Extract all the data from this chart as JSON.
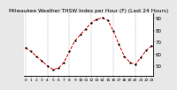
{
  "title": "Milwaukee Weather THSW Index per Hour (F) (Last 24 Hours)",
  "hours": [
    0,
    1,
    2,
    3,
    4,
    5,
    6,
    7,
    8,
    9,
    10,
    11,
    12,
    13,
    14,
    15,
    16,
    17,
    18,
    19,
    20,
    21,
    22,
    23
  ],
  "values": [
    65,
    62,
    58,
    54,
    50,
    47,
    48,
    53,
    62,
    71,
    76,
    81,
    86,
    89,
    90,
    88,
    79,
    68,
    58,
    53,
    51,
    57,
    63,
    67
  ],
  "line_color": "#dd0000",
  "marker_color": "#111111",
  "bg_color": "#e8e8e8",
  "plot_bg_color": "#ffffff",
  "grid_color": "#888888",
  "ylim": [
    42,
    94
  ],
  "ytick_values": [
    90,
    80,
    70,
    60,
    50
  ],
  "ytick_labels": [
    "90",
    "80",
    "70",
    "60",
    "50"
  ],
  "vgrid_positions": [
    0,
    4,
    8,
    12,
    16,
    20
  ],
  "ylabel_fontsize": 4.0,
  "xlabel_fontsize": 3.2,
  "title_fontsize": 4.2,
  "linewidth": 0.7,
  "markersize": 1.3
}
